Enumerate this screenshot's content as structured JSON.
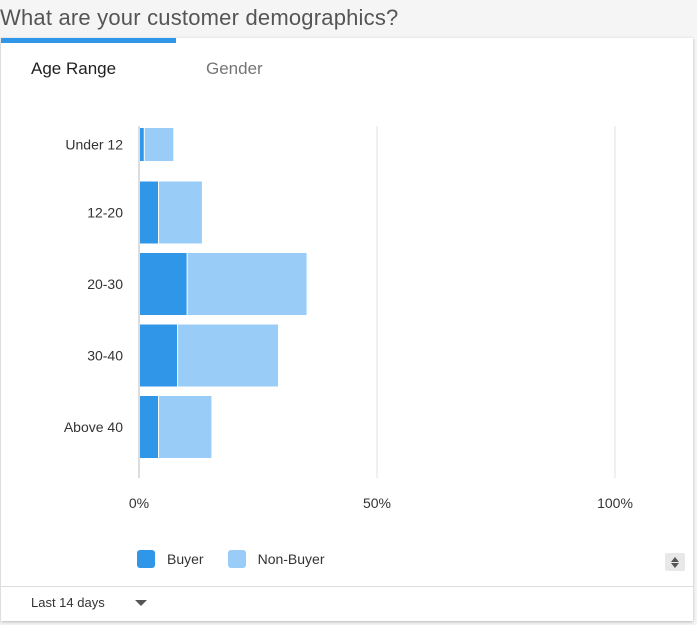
{
  "header": {
    "question": "What are your customer demographics?"
  },
  "tabs": [
    {
      "label": "Age Range",
      "active": true
    },
    {
      "label": "Gender",
      "active": false
    }
  ],
  "chart_data": {
    "type": "bar",
    "orientation": "horizontal",
    "stacked": true,
    "categories": [
      "Under 12",
      "12-20",
      "20-30",
      "30-40",
      "Above 40"
    ],
    "series": [
      {
        "name": "Buyer",
        "color": "#2f96e8",
        "values": [
          1,
          4,
          10,
          8,
          4
        ]
      },
      {
        "name": "Non-Buyer",
        "color": "#99cdf8",
        "values": [
          6,
          9,
          25,
          21,
          11
        ]
      }
    ],
    "xticks": [
      "0%",
      "50%",
      "100%"
    ],
    "xlim": [
      0,
      100
    ],
    "grid": true,
    "legend": "bottom-left"
  },
  "legend": {
    "items": [
      {
        "label": "Buyer",
        "color": "#2f96e8"
      },
      {
        "label": "Non-Buyer",
        "color": "#99cdf8"
      }
    ]
  },
  "footer": {
    "date_range": "Last 14 days"
  }
}
